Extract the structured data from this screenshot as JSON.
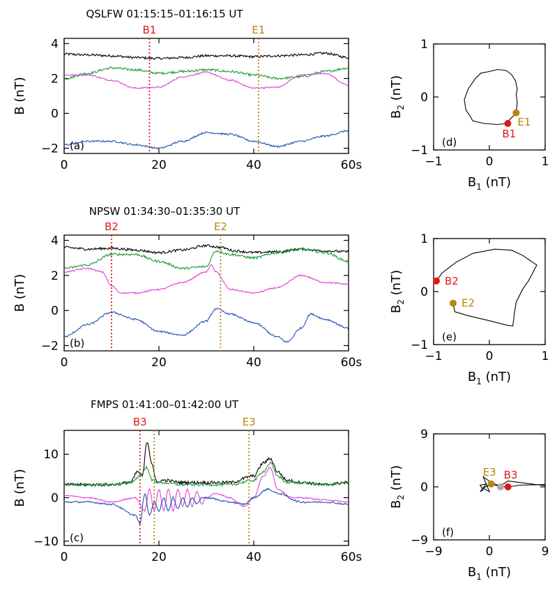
{
  "colors": {
    "black": "#000000",
    "green": "#1a9a3a",
    "magenta": "#e040d8",
    "blue": "#2050b0",
    "red": "#e01818",
    "gold": "#b8860b",
    "gray": "#aaaaaa"
  },
  "chart_data": [
    {
      "id": "a",
      "type": "line",
      "title": "QSLFW 01:15:15–01:16:15 UT",
      "panel_letter": "(a)",
      "ylabel": "B (nT)",
      "xlim": [
        0,
        60
      ],
      "ylim": [
        -2.3,
        4.3
      ],
      "xticks": [
        0,
        20,
        40,
        60
      ],
      "xtick_labels": [
        "0",
        "20",
        "40",
        "60s"
      ],
      "yticks": [
        -2,
        0,
        2,
        4
      ],
      "ytick_labels": [
        "−2",
        "0",
        "2",
        "4"
      ],
      "markers": [
        {
          "label": "B1",
          "x": 18,
          "color": "red"
        },
        {
          "label": "E1",
          "x": 41,
          "color": "gold"
        }
      ],
      "series": [
        {
          "color": "black",
          "noise": 0.07,
          "x": [
            0,
            5,
            10,
            15,
            20,
            25,
            30,
            35,
            40,
            45,
            50,
            55,
            60
          ],
          "y": [
            3.4,
            3.35,
            3.3,
            3.2,
            3.15,
            3.2,
            3.3,
            3.3,
            3.25,
            3.3,
            3.35,
            3.45,
            3.2
          ]
        },
        {
          "color": "green",
          "noise": 0.07,
          "x": [
            0,
            5,
            10,
            15,
            20,
            25,
            30,
            35,
            40,
            45,
            50,
            55,
            60
          ],
          "y": [
            2.0,
            2.3,
            2.6,
            2.5,
            2.3,
            2.4,
            2.5,
            2.4,
            2.2,
            2.0,
            2.1,
            2.4,
            2.6
          ]
        },
        {
          "color": "magenta",
          "noise": 0.04,
          "x": [
            0,
            5,
            10,
            15,
            20,
            25,
            30,
            35,
            40,
            45,
            50,
            55,
            60
          ],
          "y": [
            2.2,
            2.2,
            1.9,
            1.45,
            1.5,
            2.1,
            2.35,
            1.9,
            1.45,
            1.5,
            2.2,
            2.3,
            1.6
          ]
        },
        {
          "color": "blue",
          "noise": 0.05,
          "x": [
            0,
            5,
            10,
            15,
            20,
            25,
            30,
            35,
            40,
            45,
            50,
            55,
            60
          ],
          "y": [
            -1.8,
            -1.6,
            -1.6,
            -1.8,
            -2.0,
            -1.6,
            -1.1,
            -1.2,
            -1.6,
            -1.9,
            -1.6,
            -1.3,
            -1.0
          ]
        }
      ]
    },
    {
      "id": "b",
      "type": "line",
      "title": "NPSW 01:34:30–01:35:30 UT",
      "panel_letter": "(b)",
      "ylabel": "B (nT)",
      "xlim": [
        0,
        60
      ],
      "ylim": [
        -2.3,
        4.3
      ],
      "xticks": [
        0,
        20,
        40,
        60
      ],
      "xtick_labels": [
        "0",
        "20",
        "40",
        "60s"
      ],
      "yticks": [
        -2,
        0,
        2,
        4
      ],
      "ytick_labels": [
        "−2",
        "0",
        "2",
        "4"
      ],
      "markers": [
        {
          "label": "B2",
          "x": 10,
          "color": "red"
        },
        {
          "label": "E2",
          "x": 33,
          "color": "gold"
        }
      ],
      "series": [
        {
          "color": "black",
          "noise": 0.07,
          "x": [
            0,
            5,
            10,
            15,
            20,
            25,
            30,
            33,
            36,
            40,
            45,
            50,
            55,
            60
          ],
          "y": [
            3.6,
            3.5,
            3.55,
            3.45,
            3.3,
            3.45,
            3.7,
            3.6,
            3.4,
            3.3,
            3.35,
            3.5,
            3.4,
            3.35
          ]
        },
        {
          "color": "green",
          "noise": 0.07,
          "x": [
            0,
            5,
            10,
            15,
            20,
            25,
            30,
            32,
            35,
            40,
            45,
            50,
            55,
            60
          ],
          "y": [
            2.4,
            2.6,
            3.2,
            3.2,
            2.8,
            2.4,
            2.5,
            3.4,
            3.2,
            3.0,
            3.3,
            3.5,
            3.3,
            2.8
          ]
        },
        {
          "color": "magenta",
          "noise": 0.04,
          "x": [
            0,
            5,
            8,
            10,
            12,
            15,
            20,
            25,
            30,
            31,
            32,
            35,
            40,
            45,
            50,
            55,
            60
          ],
          "y": [
            2.2,
            2.4,
            2.2,
            1.4,
            1.0,
            1.0,
            1.2,
            1.6,
            2.2,
            2.6,
            2.2,
            1.2,
            1.0,
            1.3,
            2.0,
            1.6,
            1.5
          ]
        },
        {
          "color": "blue",
          "noise": 0.05,
          "x": [
            0,
            5,
            10,
            15,
            20,
            25,
            30,
            32,
            35,
            40,
            45,
            47,
            50,
            52,
            55,
            60
          ],
          "y": [
            -1.5,
            -0.8,
            -0.1,
            -0.5,
            -1.2,
            -1.4,
            -0.6,
            0.1,
            -0.2,
            -0.7,
            -1.5,
            -1.8,
            -1.0,
            -0.2,
            -0.5,
            -1.0
          ]
        }
      ]
    },
    {
      "id": "c",
      "type": "line",
      "title": "FMPS 01:41:00–01:42:00 UT",
      "panel_letter": "(c)",
      "ylabel": "B (nT)",
      "xlim": [
        0,
        60
      ],
      "ylim": [
        -11,
        15.5
      ],
      "xticks": [
        0,
        20,
        40,
        60
      ],
      "xtick_labels": [
        "0",
        "20",
        "40",
        "60s"
      ],
      "yticks": [
        -10,
        0,
        10
      ],
      "ytick_labels": [
        "−10",
        "0",
        "10"
      ],
      "markers": [
        {
          "label": "B3",
          "x": 16,
          "color": "red"
        },
        {
          "label": "",
          "x": 19,
          "color": "gold"
        },
        {
          "label": "E3",
          "x": 39,
          "color": "gold"
        }
      ],
      "series": [
        {
          "color": "black",
          "noise": 0.35,
          "x": [
            0,
            5,
            10,
            14,
            15.5,
            16.5,
            17.5,
            18.5,
            19.5,
            21,
            25,
            30,
            35,
            40,
            42,
            43.5,
            45,
            47,
            50,
            55,
            60
          ],
          "y": [
            3,
            3,
            3,
            3.5,
            6,
            5,
            13,
            8,
            3.5,
            4,
            3.5,
            3.5,
            3.5,
            5,
            8,
            9,
            6,
            4,
            3.5,
            3,
            3.5
          ]
        },
        {
          "color": "green",
          "noise": 0.3,
          "x": [
            0,
            5,
            10,
            14,
            16,
            17.5,
            18.5,
            20,
            25,
            30,
            35,
            40,
            42,
            43.5,
            45,
            47,
            50,
            55,
            60
          ],
          "y": [
            3,
            3,
            3,
            3.5,
            5,
            7,
            4,
            3.5,
            3,
            3,
            3,
            4,
            6,
            8,
            5,
            3.5,
            3.5,
            3,
            3.5
          ]
        },
        {
          "color": "magenta",
          "noise": 0.15,
          "x": [
            0,
            5,
            10,
            15,
            17,
            18,
            19,
            20,
            21,
            22,
            23,
            24,
            25,
            26,
            27,
            28,
            29,
            30,
            32,
            35,
            38,
            40,
            42,
            43.5,
            45,
            48,
            50,
            55,
            60
          ],
          "y": [
            0.5,
            0,
            -1,
            0,
            -3,
            2,
            -3,
            2,
            -3,
            2,
            -3,
            2,
            -2,
            2,
            -2,
            1.5,
            -1.5,
            0,
            1,
            0,
            -2,
            0,
            5,
            7,
            2,
            0,
            0,
            -0.5,
            -1
          ]
        },
        {
          "color": "blue",
          "noise": 0.2,
          "x": [
            0,
            5,
            10,
            15,
            16,
            17,
            18,
            19,
            20,
            21,
            22,
            23,
            24,
            25,
            26,
            27,
            28,
            29,
            30,
            35,
            38,
            40,
            43,
            45,
            50,
            55,
            60
          ],
          "y": [
            -1,
            -1,
            -1.5,
            -4,
            -6,
            1,
            -4,
            -1,
            -3,
            0,
            -3,
            0,
            -2.5,
            0,
            -2,
            0,
            -1.5,
            0,
            0,
            -1,
            -1.5,
            0,
            2,
            1,
            -1,
            -1,
            -1.5
          ]
        }
      ]
    },
    {
      "id": "d",
      "type": "line",
      "panel_letter": "(d)",
      "xlabel": "B1 (nT)",
      "ylabel": "B2 (nT)",
      "xlim": [
        -1,
        1
      ],
      "ylim": [
        -1,
        1
      ],
      "xticks": [
        -1,
        0,
        1
      ],
      "xtick_labels": [
        "−1",
        "0",
        "1"
      ],
      "yticks": [
        -1,
        0,
        1
      ],
      "ytick_labels": [
        "−1",
        "0",
        "1"
      ],
      "hodogram": {
        "x": [
          0.48,
          0.5,
          0.48,
          0.5,
          0.47,
          0.4,
          0.3,
          0.15,
          0.0,
          -0.15,
          -0.25,
          -0.38,
          -0.45,
          -0.42,
          -0.35,
          -0.3,
          -0.1,
          0.15,
          0.3,
          0.48
        ],
        "y": [
          -0.3,
          -0.1,
          0.05,
          0.15,
          0.3,
          0.42,
          0.5,
          0.52,
          0.48,
          0.45,
          0.35,
          0.15,
          -0.05,
          -0.25,
          -0.35,
          -0.45,
          -0.5,
          -0.52,
          -0.5,
          -0.3
        ]
      },
      "points": [
        {
          "label": "B1",
          "x": 0.33,
          "y": -0.5,
          "color": "red",
          "label_dx": -8,
          "label_dy": 20
        },
        {
          "label": "E1",
          "x": 0.48,
          "y": -0.3,
          "color": "gold",
          "label_dx": 2,
          "label_dy": 18
        }
      ]
    },
    {
      "id": "e",
      "type": "line",
      "panel_letter": "(e)",
      "xlabel": "B1 (nT)",
      "ylabel": "B2 (nT)",
      "xlim": [
        -1,
        1
      ],
      "ylim": [
        -1,
        1
      ],
      "xticks": [
        -1,
        0,
        1
      ],
      "xtick_labels": [
        "−1",
        "0",
        "1"
      ],
      "yticks": [
        -1,
        0,
        1
      ],
      "ytick_labels": [
        "−1",
        "0",
        "1"
      ],
      "hodogram": {
        "x": [
          -0.95,
          -0.85,
          -0.6,
          -0.3,
          0.1,
          0.4,
          0.6,
          0.85,
          0.7,
          0.6,
          0.48,
          0.45,
          0.42,
          0.3,
          0.0,
          -0.4,
          -0.62,
          -0.65
        ],
        "y": [
          0.2,
          0.35,
          0.55,
          0.72,
          0.8,
          0.78,
          0.68,
          0.5,
          0.2,
          0.05,
          -0.2,
          -0.4,
          -0.65,
          -0.63,
          -0.55,
          -0.45,
          -0.38,
          -0.22
        ]
      },
      "points": [
        {
          "label": "B2",
          "x": -0.95,
          "y": 0.2,
          "color": "red",
          "label_dx": 12,
          "label_dy": 5
        },
        {
          "label": "E2",
          "x": -0.65,
          "y": -0.22,
          "color": "gold",
          "label_dx": 12,
          "label_dy": 5
        }
      ]
    },
    {
      "id": "f",
      "type": "line",
      "panel_letter": "(f)",
      "xlabel": "B1 (nT)",
      "ylabel": "B2 (nT)",
      "xlim": [
        -9,
        9
      ],
      "ylim": [
        -9,
        9
      ],
      "xticks": [
        -9,
        0,
        9
      ],
      "xtick_labels": [
        "−9",
        "0",
        "9"
      ],
      "yticks": [
        -9,
        0,
        9
      ],
      "ytick_labels": [
        "−9",
        "0",
        "9"
      ],
      "hodogram": {
        "x": [
          3,
          5,
          9,
          9,
          6,
          3,
          1.8,
          0.5,
          -1,
          -0.5,
          -1.5,
          -1,
          -1.5,
          -0.5,
          0,
          -1,
          0.3,
          1.8,
          3
        ],
        "y": [
          0,
          0.3,
          0.4,
          0.2,
          0.6,
          1.0,
          0.2,
          0.6,
          1.7,
          0.5,
          0.3,
          -0.5,
          -0.8,
          0.5,
          -0.8,
          -0.2,
          0.5,
          0,
          0
        ]
      },
      "points": [
        {
          "label": "B3",
          "x": 3,
          "y": 0,
          "color": "red",
          "label_dx": -6,
          "label_dy": -12
        },
        {
          "label": "E3",
          "x": 0.3,
          "y": 0.5,
          "color": "gold",
          "label_dx": -12,
          "label_dy": -12
        },
        {
          "label": "",
          "x": 1.8,
          "y": 0,
          "color": "gray",
          "label_dx": 0,
          "label_dy": 0
        }
      ]
    }
  ]
}
